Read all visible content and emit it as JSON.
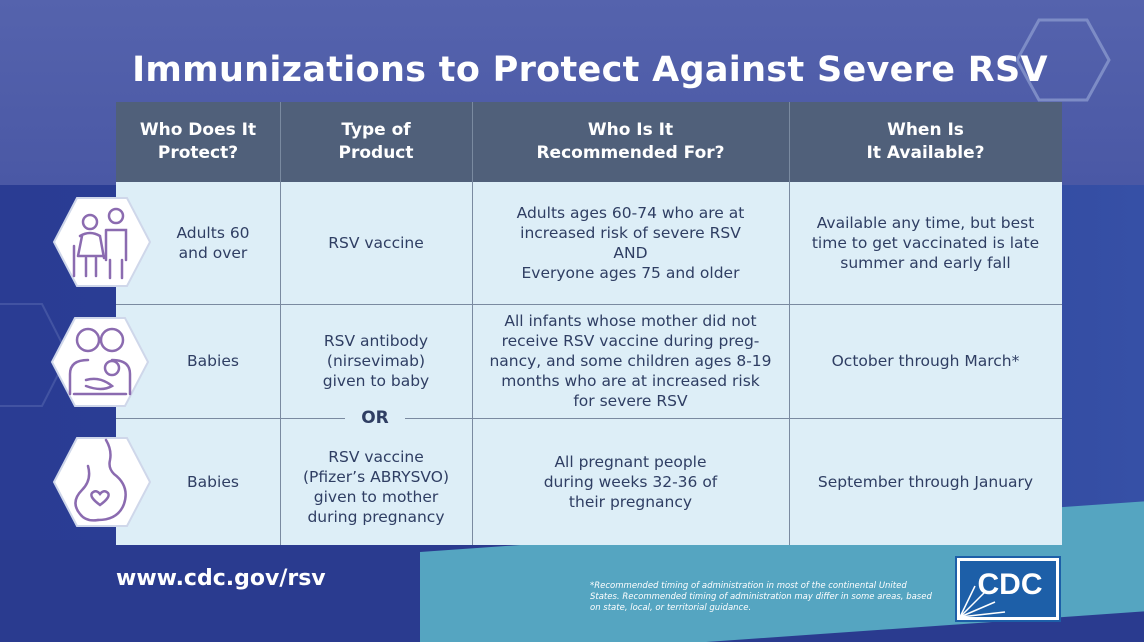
{
  "title": "Immunizations to Protect Against Severe RSV",
  "table": {
    "headers": [
      "Who Does It\nProtect?",
      "Type of\nProduct",
      "Who Is It\nRecommended For?",
      "When Is\nIt Available?"
    ],
    "rows": [
      {
        "icon": "older-adults-icon",
        "who": "Adults 60\nand over",
        "product": "RSV vaccine",
        "recommended": "Adults ages 60-74 who are at\nincreased risk of severe RSV\nAND\nEveryone ages 75 and older",
        "available": "Available any time, but best\ntime to get vaccinated is late\nsummer and early fall"
      },
      {
        "icon": "parent-baby-icon",
        "who": "Babies",
        "product": "RSV antibody\n(nirsevimab)\ngiven to baby",
        "recommended": "All infants whose mother did not\nreceive RSV vaccine during preg-\nnancy, and some children ages 8-19\nmonths who are at increased risk\nfor severe RSV",
        "available": "October through March*"
      },
      {
        "icon": "pregnant-person-icon",
        "who": "Babies",
        "product": "RSV vaccine\n(Pfizer’s ABRYSVO)\ngiven to mother\nduring pregnancy",
        "recommended": "All pregnant people\nduring weeks 32-36 of\ntheir pregnancy",
        "available": "September through January"
      }
    ],
    "or_label": "OR"
  },
  "footer": {
    "url": "www.cdc.gov/rsv",
    "footnote": "*Recommended timing of administration in most of the continental United States. Recommended timing of administration may differ in some areas, based on state, local, or territorial guidance.",
    "logo_text": "CDC"
  },
  "colors": {
    "background": "#3d4f9c",
    "header": "#50607a",
    "cell": "#ddeef7",
    "text": "#2f3e63",
    "icon": "#8b6bb0",
    "teal": "#55a5c1"
  }
}
